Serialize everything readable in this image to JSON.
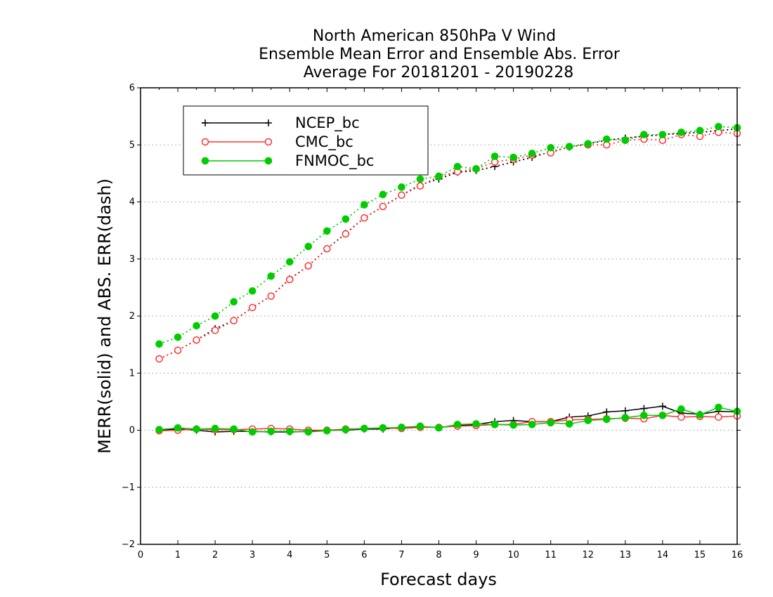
{
  "chart_data": {
    "type": "line",
    "title": [
      "North American 850hPa V Wind",
      "Ensemble Mean Error and Ensemble Abs. Error",
      "Average For 20181201 - 20190228"
    ],
    "xlabel": "Forecast days",
    "ylabel": "MERR(solid) and ABS. ERR(dash)",
    "xlim": [
      0,
      16
    ],
    "ylim": [
      -2,
      6
    ],
    "xticks": [
      "0",
      "1",
      "2",
      "3",
      "4",
      "5",
      "6",
      "7",
      "8",
      "9",
      "10",
      "11",
      "12",
      "13",
      "14",
      "15",
      "16"
    ],
    "yticks": [
      "-2",
      "-1",
      "0",
      "1",
      "2",
      "3",
      "4",
      "5",
      "6"
    ],
    "grid": "horizontal dotted",
    "legend_position": "top-left",
    "x": [
      0.5,
      1,
      1.5,
      2,
      2.5,
      3,
      3.5,
      4,
      4.5,
      5,
      5.5,
      6,
      6.5,
      7,
      7.5,
      8,
      8.5,
      9,
      9.5,
      10,
      10.5,
      11,
      11.5,
      12,
      12.5,
      13,
      13.5,
      14,
      14.5,
      15,
      15.5,
      16
    ],
    "series": [
      {
        "name": "NCEP_bc",
        "color": "#000000",
        "marker": "plus",
        "merr": [
          0.0,
          0.02,
          0.0,
          -0.03,
          -0.02,
          -0.02,
          -0.03,
          -0.03,
          -0.02,
          0.0,
          0.0,
          0.02,
          0.02,
          0.05,
          0.06,
          0.05,
          0.08,
          0.1,
          0.15,
          0.17,
          0.15,
          0.15,
          0.23,
          0.25,
          0.32,
          0.34,
          0.38,
          0.42,
          0.3,
          0.28,
          0.33,
          0.32
        ],
        "abs_err": [
          1.25,
          1.4,
          1.58,
          1.78,
          1.92,
          2.15,
          2.35,
          2.65,
          2.88,
          3.18,
          3.45,
          3.72,
          3.92,
          4.12,
          4.3,
          4.4,
          4.52,
          4.55,
          4.62,
          4.7,
          4.78,
          4.88,
          4.96,
          5.02,
          5.08,
          5.12,
          5.15,
          5.18,
          5.2,
          5.22,
          5.25,
          5.28
        ]
      },
      {
        "name": "CMC_bc",
        "color": "#ff3030",
        "marker": "open-circle",
        "merr": [
          -0.01,
          0.0,
          0.02,
          0.01,
          0.01,
          0.02,
          0.03,
          0.02,
          0.0,
          0.0,
          0.02,
          0.03,
          0.04,
          0.03,
          0.05,
          0.05,
          0.07,
          0.08,
          0.1,
          0.1,
          0.15,
          0.15,
          0.18,
          0.19,
          0.2,
          0.21,
          0.2,
          0.26,
          0.23,
          0.24,
          0.23,
          0.25
        ],
        "abs_err": [
          1.25,
          1.4,
          1.58,
          1.75,
          1.92,
          2.15,
          2.35,
          2.64,
          2.88,
          3.18,
          3.44,
          3.72,
          3.92,
          4.12,
          4.28,
          4.45,
          4.53,
          4.58,
          4.7,
          4.75,
          4.82,
          4.86,
          4.97,
          5.0,
          5.0,
          5.08,
          5.1,
          5.08,
          5.18,
          5.15,
          5.22,
          5.2
        ]
      },
      {
        "name": "FNMOC_bc",
        "color": "#00cc00",
        "marker": "filled-circle",
        "merr": [
          0.01,
          0.04,
          0.02,
          0.03,
          0.02,
          -0.03,
          -0.02,
          -0.02,
          -0.03,
          -0.01,
          0.01,
          0.03,
          0.04,
          0.05,
          0.07,
          0.04,
          0.1,
          0.11,
          0.1,
          0.09,
          0.1,
          0.13,
          0.11,
          0.17,
          0.19,
          0.22,
          0.26,
          0.26,
          0.37,
          0.27,
          0.4,
          0.33
        ],
        "abs_err": [
          1.51,
          1.63,
          1.83,
          2.0,
          2.25,
          2.44,
          2.7,
          2.95,
          3.22,
          3.49,
          3.7,
          3.95,
          4.13,
          4.26,
          4.4,
          4.45,
          4.62,
          4.58,
          4.8,
          4.78,
          4.85,
          4.95,
          4.97,
          5.02,
          5.1,
          5.08,
          5.18,
          5.18,
          5.22,
          5.25,
          5.32,
          5.3
        ]
      }
    ]
  }
}
